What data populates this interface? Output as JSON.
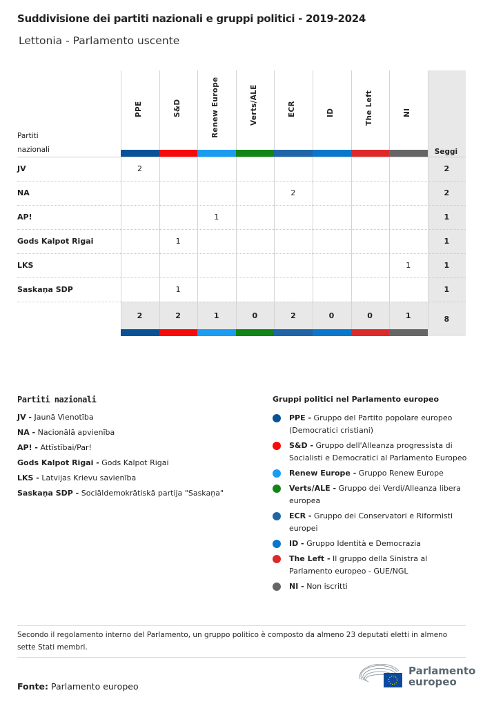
{
  "title": "Suddivisione dei partiti nazionali e gruppi politici - 2019-2024",
  "subtitle": "Lettonia - Parlamento uscente",
  "chart_data": {
    "type": "table",
    "row_header": "Partiti nazionali",
    "total_header": "Seggi",
    "groups": [
      {
        "name": "PPE",
        "color": "#0a5297"
      },
      {
        "name": "S&D",
        "color": "#f70a0a"
      },
      {
        "name": "Renew Europe",
        "color": "#1a9cf0"
      },
      {
        "name": "Verts/ALE",
        "color": "#138417"
      },
      {
        "name": "ECR",
        "color": "#1f65a8"
      },
      {
        "name": "ID",
        "color": "#0a77cc"
      },
      {
        "name": "The Left",
        "color": "#dc2a2a"
      },
      {
        "name": "NI",
        "color": "#666666"
      }
    ],
    "rows": [
      {
        "party": "JV",
        "values": [
          2,
          null,
          null,
          null,
          null,
          null,
          null,
          null
        ],
        "total": 2
      },
      {
        "party": "NA",
        "values": [
          null,
          null,
          null,
          null,
          2,
          null,
          null,
          null
        ],
        "total": 2
      },
      {
        "party": "AP!",
        "values": [
          null,
          null,
          1,
          null,
          null,
          null,
          null,
          null
        ],
        "total": 1
      },
      {
        "party": "Gods Kalpot Rigai",
        "values": [
          null,
          1,
          null,
          null,
          null,
          null,
          null,
          null
        ],
        "total": 1
      },
      {
        "party": "LKS",
        "values": [
          null,
          null,
          null,
          null,
          null,
          null,
          null,
          1
        ],
        "total": 1
      },
      {
        "party": "Saskaņa SDP",
        "values": [
          null,
          1,
          null,
          null,
          null,
          null,
          null,
          null
        ],
        "total": 1
      }
    ],
    "totals": [
      2,
      2,
      1,
      0,
      2,
      0,
      0,
      1
    ],
    "grand_total": 8
  },
  "legend_parties": {
    "title": "Partiti nazionali",
    "items": [
      {
        "abbr": "JV -",
        "name": "Jaunā Vienotība"
      },
      {
        "abbr": "NA -",
        "name": "Nacionālā apvienība"
      },
      {
        "abbr": "AP! -",
        "name": "Attīstībai/Par!"
      },
      {
        "abbr": "Gods Kalpot Rigai -",
        "name": "Gods Kalpot Rigai"
      },
      {
        "abbr": "LKS -",
        "name": "Latvijas Krievu savienība"
      },
      {
        "abbr": "Saskaņa SDP -",
        "name": "Sociāldemokrātiskā partija \"Saskaņa\""
      }
    ]
  },
  "legend_groups": {
    "title": "Gruppi politici nel Parlamento europeo",
    "items": [
      {
        "abbr": "PPE -",
        "name": "Gruppo del Partito popolare europeo (Democratici cristiani)",
        "color": "#0a5297"
      },
      {
        "abbr": "S&D -",
        "name": "Gruppo dell'Alleanza progressista di Socialisti e Democratici al Parlamento Europeo",
        "color": "#f70a0a"
      },
      {
        "abbr": "Renew Europe -",
        "name": "Gruppo Renew Europe",
        "color": "#1a9cf0"
      },
      {
        "abbr": "Verts/ALE -",
        "name": "Gruppo dei Verdi/Alleanza libera europea",
        "color": "#138417"
      },
      {
        "abbr": "ECR -",
        "name": "Gruppo dei Conservatori e Riformisti europei",
        "color": "#1f65a8"
      },
      {
        "abbr": "ID -",
        "name": "Gruppo Identità e Democrazia",
        "color": "#0a77cc"
      },
      {
        "abbr": "The Left -",
        "name": "Il gruppo della Sinistra al Parlamento europeo - GUE/NGL",
        "color": "#dc2a2a"
      },
      {
        "abbr": "NI -",
        "name": "Non iscritti",
        "color": "#666666"
      }
    ]
  },
  "note": "Secondo il regolamento interno del Parlamento, un gruppo politico è composto da almeno 23 deputati eletti in almeno sette Stati membri.",
  "source_label": "Fonte:",
  "source": "Parlamento europeo",
  "logo_text": "Parlamento europeo"
}
